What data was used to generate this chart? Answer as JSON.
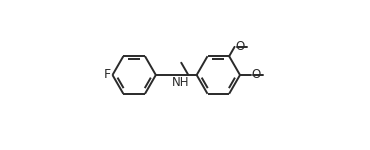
{
  "background": "#ffffff",
  "line_color": "#2a2a2a",
  "line_width": 1.4,
  "fig_width": 3.7,
  "fig_height": 1.5,
  "xlim": [
    -0.05,
    1.05
  ],
  "ylim": [
    0.05,
    0.95
  ]
}
